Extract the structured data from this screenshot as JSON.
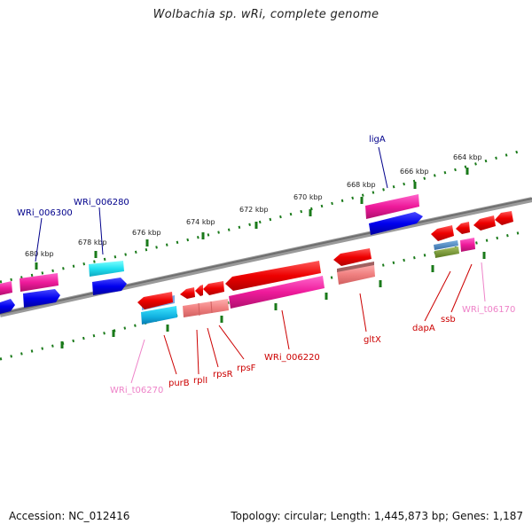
{
  "title": "Wolbachia sp. wRi, complete genome",
  "footer": {
    "accession": "Accession: NC_012416",
    "genome_info": "Topology: circular; Length: 1,445,873 bp; Genes: 1,187"
  },
  "colors": {
    "backbone": "#808080",
    "tick": "#1a7a1a",
    "label_blue": "#00008b",
    "label_red": "#cc0000",
    "label_pink": "#ee82c8"
  },
  "kbp_labels": [
    "664 kbp",
    "666 kbp",
    "668 kbp",
    "670 kbp",
    "672 kbp",
    "674 kbp",
    "676 kbp",
    "678 kbp",
    "680 kbp"
  ],
  "gene_labels": {
    "ligA": "ligA",
    "wri_006280": "WRi_006280",
    "wri_006300": "WRi_006300",
    "purB": "purB",
    "rplI": "rplI",
    "rpsR": "rpsR",
    "rpsF": "rpsF",
    "wri_006220": "WRi_006220",
    "gltX": "gltX",
    "dapA": "dapA",
    "ssb": "ssb",
    "wri_t06170": "WRi_t06170",
    "wri_t06270": "WRi_t06270"
  }
}
